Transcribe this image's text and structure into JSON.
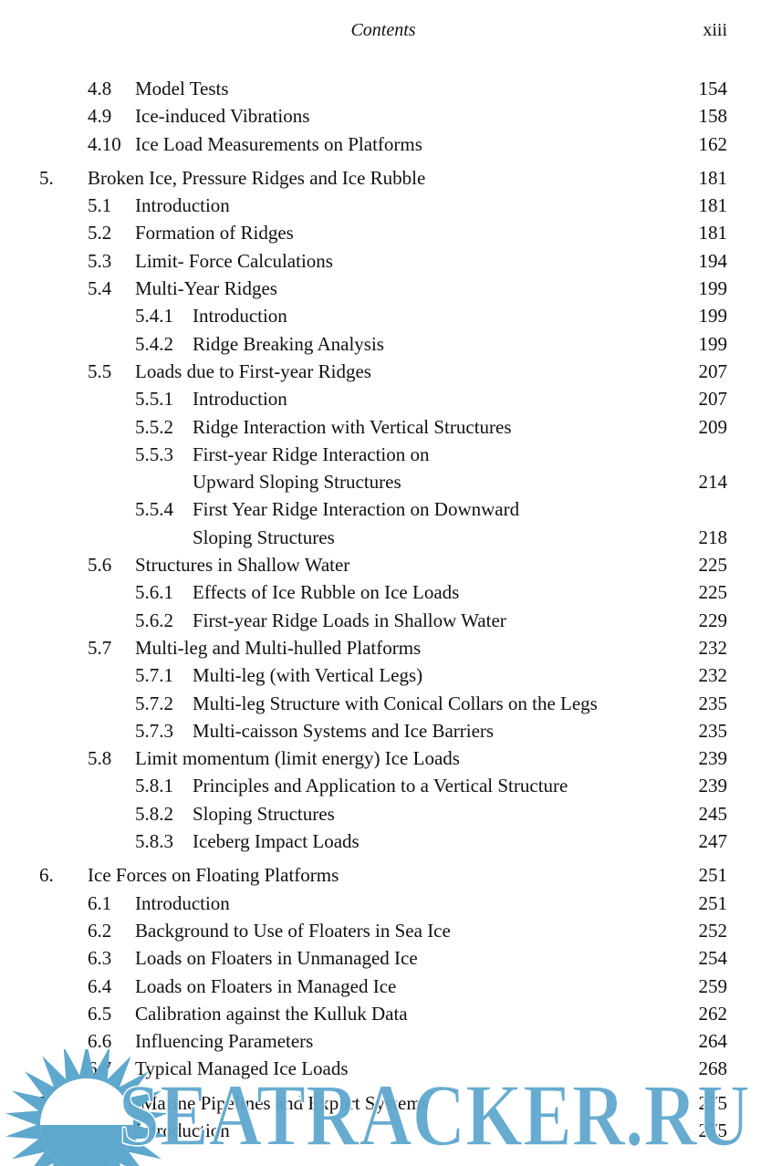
{
  "header": {
    "title": "Contents",
    "page": "xiii"
  },
  "toc": [
    {
      "level": 1,
      "num": "4.8",
      "title": "Model Tests",
      "page": "154"
    },
    {
      "level": 1,
      "num": "4.9",
      "title": "Ice-induced Vibrations",
      "page": "158"
    },
    {
      "level": 1,
      "num": "4.10",
      "title": "Ice Load Measurements on Platforms",
      "page": "162"
    },
    {
      "level": 0,
      "num": "5.",
      "title": "Broken Ice, Pressure Ridges and Ice Rubble",
      "page": "181"
    },
    {
      "level": 1,
      "num": "5.1",
      "title": "Introduction",
      "page": "181"
    },
    {
      "level": 1,
      "num": "5.2",
      "title": "Formation of Ridges",
      "page": "181"
    },
    {
      "level": 1,
      "num": "5.3",
      "title": "Limit- Force Calculations",
      "page": "194"
    },
    {
      "level": 1,
      "num": "5.4",
      "title": "Multi-Year Ridges",
      "page": "199"
    },
    {
      "level": 2,
      "num": "5.4.1",
      "title": "Introduction",
      "page": "199"
    },
    {
      "level": 2,
      "num": "5.4.2",
      "title": "Ridge Breaking Analysis",
      "page": "199"
    },
    {
      "level": 1,
      "num": "5.5",
      "title": "Loads due to First-year Ridges",
      "page": "207"
    },
    {
      "level": 2,
      "num": "5.5.1",
      "title": "Introduction",
      "page": "207"
    },
    {
      "level": 2,
      "num": "5.5.2",
      "title": "Ridge Interaction with Vertical Structures",
      "page": "209"
    },
    {
      "level": 2,
      "num": "5.5.3",
      "title": "First-year Ridge Interaction on",
      "page": ""
    },
    {
      "level": 3,
      "num": "",
      "title": "Upward Sloping Structures",
      "page": "214"
    },
    {
      "level": 2,
      "num": "5.5.4",
      "title": "First Year Ridge Interaction on Downward",
      "page": ""
    },
    {
      "level": 3,
      "num": "",
      "title": "Sloping Structures",
      "page": "218"
    },
    {
      "level": 1,
      "num": "5.6",
      "title": "Structures in Shallow Water",
      "page": "225"
    },
    {
      "level": 2,
      "num": "5.6.1",
      "title": "Effects of Ice Rubble on Ice Loads",
      "page": "225"
    },
    {
      "level": 2,
      "num": "5.6.2",
      "title": "First-year Ridge Loads in Shallow Water",
      "page": "229"
    },
    {
      "level": 1,
      "num": "5.7",
      "title": "Multi-leg and Multi-hulled Platforms",
      "page": "232"
    },
    {
      "level": 2,
      "num": "5.7.1",
      "title": "Multi-leg (with Vertical Legs)",
      "page": "232"
    },
    {
      "level": 2,
      "num": "5.7.2",
      "title": "Multi-leg Structure with Conical Collars on the Legs",
      "page": "235"
    },
    {
      "level": 2,
      "num": "5.7.3",
      "title": "Multi-caisson Systems and Ice Barriers",
      "page": "235"
    },
    {
      "level": 1,
      "num": "5.8",
      "title": "Limit momentum (limit energy) Ice Loads",
      "page": "239"
    },
    {
      "level": 2,
      "num": "5.8.1",
      "title": "Principles and Application to a Vertical Structure",
      "page": "239"
    },
    {
      "level": 2,
      "num": "5.8.2",
      "title": "Sloping Structures",
      "page": "245"
    },
    {
      "level": 2,
      "num": "5.8.3",
      "title": "Iceberg Impact Loads",
      "page": "247"
    },
    {
      "level": 0,
      "num": "6.",
      "title": "Ice Forces on Floating Platforms",
      "page": "251"
    },
    {
      "level": 1,
      "num": "6.1",
      "title": "Introduction",
      "page": "251"
    },
    {
      "level": 1,
      "num": "6.2",
      "title": "Background to Use of Floaters in Sea Ice",
      "page": "252"
    },
    {
      "level": 1,
      "num": "6.3",
      "title": "Loads on Floaters in Unmanaged Ice",
      "page": "254"
    },
    {
      "level": 1,
      "num": "6.4",
      "title": "Loads on Floaters in Managed Ice",
      "page": "259"
    },
    {
      "level": 1,
      "num": "6.5",
      "title": "Calibration against the Kulluk Data",
      "page": "262"
    },
    {
      "level": 1,
      "num": "6.6",
      "title": "Influencing Parameters",
      "page": "264"
    },
    {
      "level": 1,
      "num": "6.7",
      "title": "Typical Managed Ice Loads",
      "page": "268"
    },
    {
      "level": 0,
      "num": "7.",
      "title": "Arctic Marine Pipelines and Export Systems",
      "page": "275"
    },
    {
      "level": 1,
      "num": "7.1",
      "title": "Introduction",
      "page": "275"
    }
  ],
  "watermark": {
    "text": "SEATRACKER.RU",
    "color": "#5fa8cd",
    "icon": "sun-icon"
  }
}
